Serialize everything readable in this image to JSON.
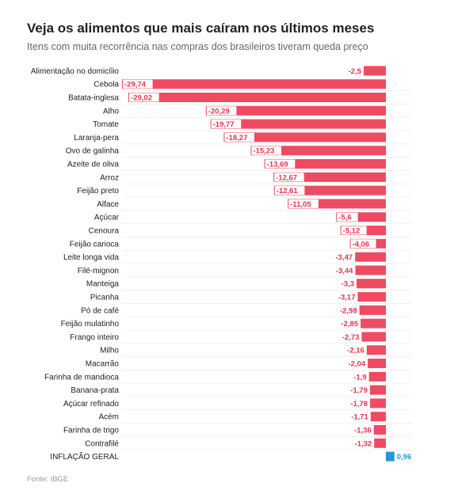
{
  "header": {
    "title": "Veja os alimentos que mais caíram nos últimos meses",
    "subtitle": "Itens com muita recorrência nas compras dos brasileiros tiveram queda preço"
  },
  "footer": {
    "source": "Fonte: IBGE"
  },
  "colors": {
    "negative": "#ee4b63",
    "positive": "#1f9ad6",
    "negative_text": "#e8344f",
    "positive_text": "#1f9ad6",
    "row_divider": "#e8e8e8"
  },
  "chart_data": {
    "type": "bar",
    "orientation": "horizontal",
    "categories": [
      "Alimentação no domicílio",
      "Cebola",
      "Batata-inglesa",
      "Alho",
      "Tomate",
      "Laranja-pera",
      "Ovo de galinha",
      "Azeite de oliva",
      "Arroz",
      "Feijão preto",
      "Alface",
      "Açúcar",
      "Cenoura",
      "Feijão carioca",
      "Leite longa vida",
      "Filé-mignon",
      "Manteiga",
      "Picanha",
      "Pó de café",
      "Feijão mulatinho",
      "Frango inteiro",
      "Milho",
      "Macarrão",
      "Farinha de mandioca",
      "Banana-prata",
      "Açúcar refinado",
      "Acém",
      "Farinha de trigo",
      "Contrafilé",
      "INFLAÇÃO GERAL"
    ],
    "values": [
      -2.5,
      -29.74,
      -29.02,
      -20.29,
      -19.77,
      -18.27,
      -15.23,
      -13.69,
      -12.67,
      -12.61,
      -11.05,
      -5.6,
      -5.12,
      -4.06,
      -3.47,
      -3.44,
      -3.3,
      -3.17,
      -2.98,
      -2.85,
      -2.73,
      -2.16,
      -2.04,
      -1.9,
      -1.79,
      -1.78,
      -1.71,
      -1.36,
      -1.32,
      0.96
    ],
    "value_labels": [
      "-2,5",
      "-29,74",
      "-29,02",
      "-20,29",
      "-19,77",
      "-18,27",
      "-15,23",
      "-13,69",
      "-12,67",
      "-12,61",
      "-11,05",
      "-5,6",
      "-5,12",
      "-4,06",
      "-3,47",
      "-3,44",
      "-3,3",
      "-3,17",
      "-2,98",
      "-2,85",
      "-2,73",
      "-2,16",
      "-2,04",
      "-1,9",
      "-1,79",
      "-1,78",
      "-1,71",
      "-1,36",
      "-1,32",
      "0,96"
    ],
    "xlim": [
      -29.74,
      0.96
    ],
    "grid": false,
    "legend": "none"
  }
}
